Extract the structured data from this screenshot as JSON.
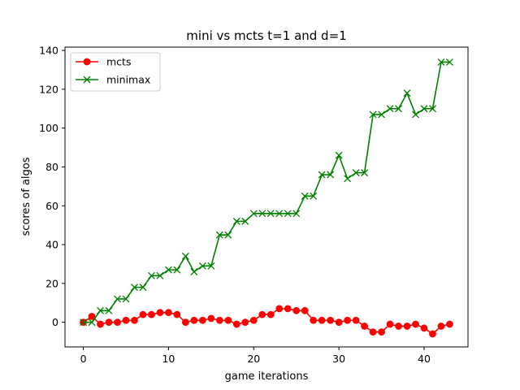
{
  "chart_data": {
    "type": "line",
    "title": "mini vs mcts t=1 and d=1",
    "xlabel": "game iterations",
    "ylabel": "scores of algos",
    "xlim": [
      -2.15,
      45.15
    ],
    "ylim": [
      -12.7,
      141.7
    ],
    "xticks": [
      0,
      10,
      20,
      30,
      40
    ],
    "yticks": [
      0,
      20,
      40,
      60,
      80,
      100,
      120,
      140
    ],
    "grid": false,
    "legend_position": "top-left",
    "x": [
      0,
      1,
      2,
      3,
      4,
      5,
      6,
      7,
      8,
      9,
      10,
      11,
      12,
      13,
      14,
      15,
      16,
      17,
      18,
      19,
      20,
      21,
      22,
      23,
      24,
      25,
      26,
      27,
      28,
      29,
      30,
      31,
      32,
      33,
      34,
      35,
      36,
      37,
      38,
      39,
      40,
      41,
      42,
      43
    ],
    "series": [
      {
        "name": "mcts",
        "color": "#ff0000",
        "marker": "circle",
        "values": [
          0,
          3,
          -1,
          0,
          0,
          1,
          1,
          4,
          4,
          5,
          5,
          4,
          0,
          1,
          1,
          2,
          1,
          1,
          -1,
          0,
          1,
          4,
          4,
          7,
          7,
          6,
          6,
          1,
          1,
          1,
          0,
          1,
          1,
          -2,
          -5,
          -5,
          -1,
          -2,
          -2,
          -1,
          -3,
          -6,
          -2,
          -1
        ]
      },
      {
        "name": "minimax",
        "color": "#008000",
        "marker": "x",
        "values": [
          0,
          0,
          6,
          6,
          12,
          12,
          18,
          18,
          24,
          24,
          27,
          27,
          34,
          26,
          29,
          29,
          45,
          45,
          52,
          52,
          56,
          56,
          56,
          56,
          56,
          56,
          65,
          65,
          76,
          76,
          86,
          74,
          77,
          77,
          107,
          107,
          110,
          110,
          118,
          107,
          110,
          110,
          134,
          134
        ]
      }
    ]
  }
}
